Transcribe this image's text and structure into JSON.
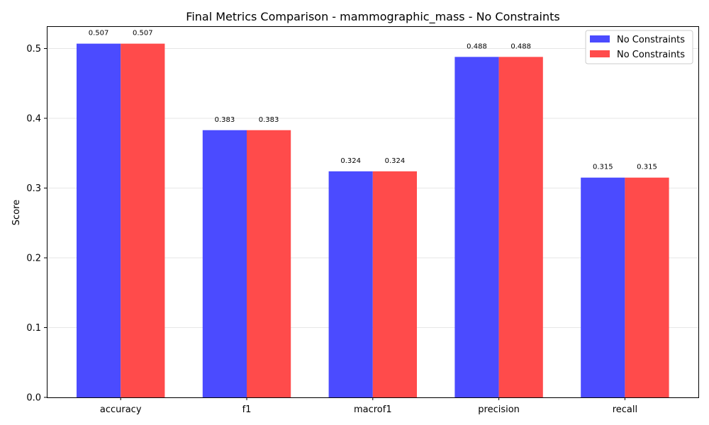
{
  "chart_data": {
    "type": "bar",
    "title": "Final Metrics Comparison - mammographic_mass - No Constraints",
    "xlabel": "",
    "ylabel": "Score",
    "categories": [
      "accuracy",
      "f1",
      "macrof1",
      "precision",
      "recall"
    ],
    "series": [
      {
        "name": "No Constraints",
        "color": "#4b4bff",
        "values": [
          0.507,
          0.383,
          0.324,
          0.488,
          0.315
        ]
      },
      {
        "name": "No Constraints",
        "color": "#ff4b4b",
        "values": [
          0.507,
          0.383,
          0.324,
          0.488,
          0.315
        ]
      }
    ],
    "value_labels": [
      [
        "0.507",
        "0.383",
        "0.324",
        "0.488",
        "0.315"
      ],
      [
        "0.507",
        "0.383",
        "0.324",
        "0.488",
        "0.315"
      ]
    ],
    "ylim": [
      0,
      0.532
    ],
    "yticks": [
      0.0,
      0.1,
      0.2,
      0.3,
      0.4,
      0.5
    ],
    "ytick_labels": [
      "0.0",
      "0.1",
      "0.2",
      "0.3",
      "0.4",
      "0.5"
    ],
    "grid": "horizontal",
    "legend": "top-right"
  }
}
